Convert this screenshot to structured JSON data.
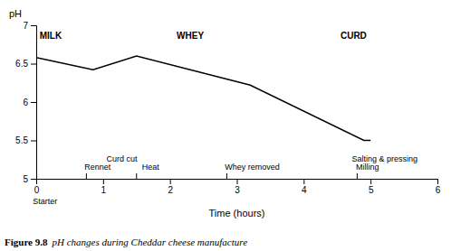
{
  "chart_data": {
    "type": "line",
    "x": [
      0,
      0.85,
      1.5,
      3.2,
      4.9,
      5.0
    ],
    "values": [
      6.58,
      6.42,
      6.6,
      6.22,
      5.5,
      5.5
    ],
    "color": "#000000",
    "xlim": [
      0,
      6
    ],
    "ylim": [
      5,
      7
    ],
    "xticks": [
      0,
      1,
      2,
      3,
      4,
      5,
      6
    ],
    "yticks": [
      5,
      5.5,
      6,
      6.5,
      7
    ],
    "grid": false,
    "xlabel": "Time (hours)",
    "ylabel": "pH",
    "section_labels": [
      {
        "text": "MILK",
        "x": 0.05,
        "y": 6.91
      },
      {
        "text": "WHEY",
        "x": 2.1,
        "y": 6.91
      },
      {
        "text": "CURD",
        "x": 4.55,
        "y": 6.91
      }
    ],
    "process_annotations": [
      {
        "text": "Rennet",
        "x": 0.72,
        "y": 5.12
      },
      {
        "text": "Curd cut",
        "x": 1.05,
        "y": 5.22
      },
      {
        "text": "Heat",
        "x": 1.58,
        "y": 5.12
      },
      {
        "text": "Whey removed",
        "x": 2.82,
        "y": 5.12
      },
      {
        "text": "Salting & pressing",
        "x": 4.72,
        "y": 5.22
      },
      {
        "text": "Milling",
        "x": 4.78,
        "y": 5.12
      }
    ],
    "event_ticks": [
      0.75,
      1.5,
      2.85,
      4.8
    ],
    "starter_label": {
      "text": "Starter",
      "x": -0.05,
      "y": 4.75
    },
    "caption": {
      "label": "Figure 9.8",
      "text": "pH changes during Cheddar cheese manufacture"
    }
  }
}
